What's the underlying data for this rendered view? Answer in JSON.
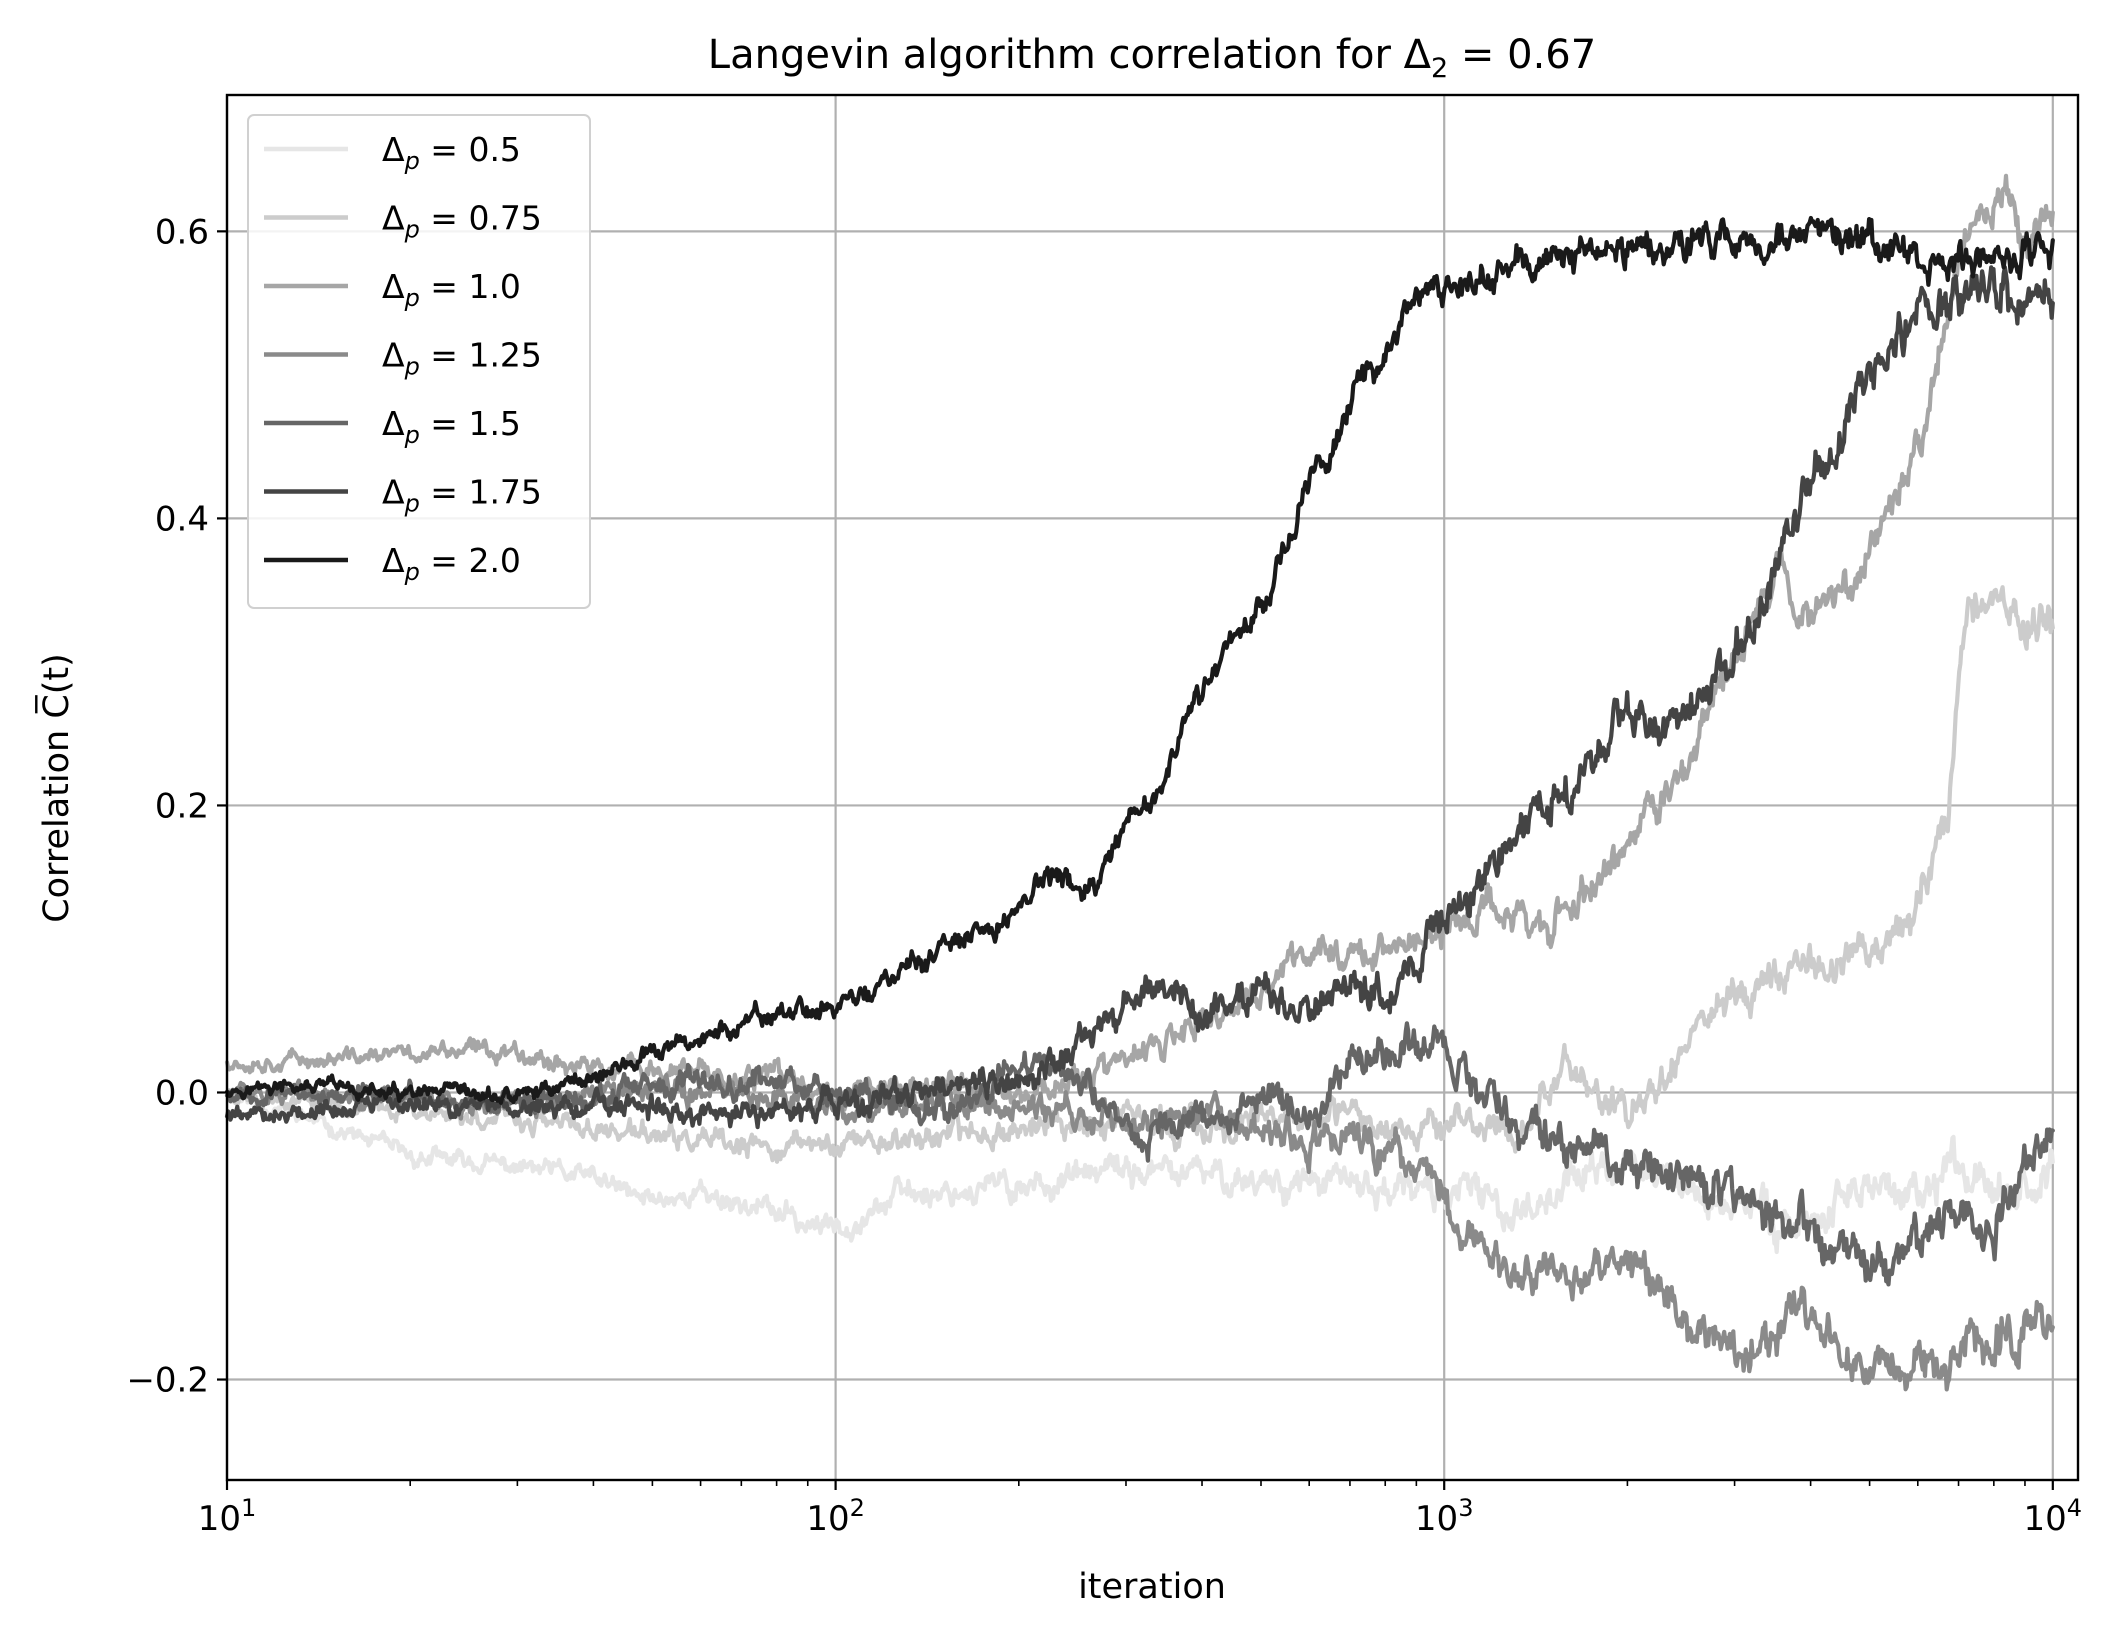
{
  "chart_data": {
    "type": "line",
    "title": "Langevin algorithm correlation for Δ₂ = 0.67",
    "xlabel": "iteration",
    "ylabel": "Correlation C̅(t)",
    "xscale": "log",
    "xlim": [
      10,
      11000
    ],
    "ylim": [
      -0.27,
      0.695
    ],
    "grid": true,
    "legend_position": "upper-left",
    "x_ticks": [
      {
        "value": 10,
        "base": "10",
        "exp": "1"
      },
      {
        "value": 100,
        "base": "10",
        "exp": "2"
      },
      {
        "value": 1000,
        "base": "10",
        "exp": "3"
      },
      {
        "value": 10000,
        "base": "10",
        "exp": "4"
      }
    ],
    "y_ticks": [
      {
        "value": -0.2,
        "label": "−0.2"
      },
      {
        "value": 0.0,
        "label": "0.0"
      },
      {
        "value": 0.2,
        "label": "0.2"
      },
      {
        "value": 0.4,
        "label": "0.4"
      },
      {
        "value": 0.6,
        "label": "0.6"
      }
    ],
    "series": [
      {
        "name": "Δp = 0.5",
        "legend_sub": "p",
        "legend_value": "0.5",
        "color": "#e6e6e6",
        "noise": 0.009,
        "seed": 11,
        "points": [
          [
            10,
            0.0
          ],
          [
            14,
            -0.02
          ],
          [
            20,
            -0.045
          ],
          [
            30,
            -0.052
          ],
          [
            40,
            -0.06
          ],
          [
            48,
            -0.075
          ],
          [
            60,
            -0.07
          ],
          [
            75,
            -0.08
          ],
          [
            95,
            -0.095
          ],
          [
            110,
            -0.085
          ],
          [
            130,
            -0.07
          ],
          [
            200,
            -0.065
          ],
          [
            300,
            -0.055
          ],
          [
            500,
            -0.06
          ],
          [
            700,
            -0.065
          ],
          [
            900,
            -0.07
          ],
          [
            1100,
            -0.07
          ],
          [
            1300,
            -0.085
          ],
          [
            1600,
            -0.06
          ],
          [
            2000,
            -0.05
          ],
          [
            3000,
            -0.08
          ],
          [
            4000,
            -0.09
          ],
          [
            5000,
            -0.06
          ],
          [
            6000,
            -0.08
          ],
          [
            7000,
            -0.05
          ],
          [
            9000,
            -0.06
          ],
          [
            10000,
            -0.06
          ]
        ]
      },
      {
        "name": "Δp = 0.75",
        "legend_sub": "p",
        "legend_value": "0.75",
        "color": "#cccccc",
        "noise": 0.009,
        "seed": 23,
        "points": [
          [
            10,
            0.0
          ],
          [
            20,
            -0.012
          ],
          [
            30,
            -0.02
          ],
          [
            50,
            -0.03
          ],
          [
            70,
            -0.04
          ],
          [
            100,
            -0.035
          ],
          [
            150,
            -0.03
          ],
          [
            250,
            -0.02
          ],
          [
            400,
            -0.025
          ],
          [
            600,
            -0.02
          ],
          [
            800,
            -0.02
          ],
          [
            1000,
            -0.02
          ],
          [
            1300,
            -0.03
          ],
          [
            1600,
            0.02
          ],
          [
            2000,
            -0.02
          ],
          [
            2500,
            0.04
          ],
          [
            3000,
            0.07
          ],
          [
            4000,
            0.09
          ],
          [
            5000,
            0.1
          ],
          [
            6000,
            0.13
          ],
          [
            6700,
            0.2
          ],
          [
            7300,
            0.35
          ],
          [
            8000,
            0.34
          ],
          [
            9000,
            0.33
          ],
          [
            10000,
            0.33
          ]
        ]
      },
      {
        "name": "Δp = 1.0",
        "legend_sub": "p",
        "legend_value": "1.0",
        "color": "#a6a6a6",
        "noise": 0.009,
        "seed": 37,
        "points": [
          [
            10,
            0.022
          ],
          [
            15,
            0.023
          ],
          [
            20,
            0.027
          ],
          [
            30,
            0.03
          ],
          [
            40,
            0.016
          ],
          [
            50,
            0.015
          ],
          [
            60,
            0.012
          ],
          [
            80,
            0.01
          ],
          [
            100,
            0.0
          ],
          [
            150,
            0.005
          ],
          [
            200,
            0.0
          ],
          [
            300,
            0.02
          ],
          [
            400,
            0.045
          ],
          [
            500,
            0.07
          ],
          [
            600,
            0.1
          ],
          [
            800,
            0.1
          ],
          [
            1000,
            0.11
          ],
          [
            1200,
            0.13
          ],
          [
            1500,
            0.115
          ],
          [
            2000,
            0.17
          ],
          [
            2500,
            0.23
          ],
          [
            3000,
            0.3
          ],
          [
            3500,
            0.37
          ],
          [
            4000,
            0.33
          ],
          [
            5000,
            0.38
          ],
          [
            6000,
            0.45
          ],
          [
            7000,
            0.58
          ],
          [
            8000,
            0.62
          ],
          [
            9000,
            0.6
          ],
          [
            10000,
            0.62
          ]
        ]
      },
      {
        "name": "Δp = 1.25",
        "legend_sub": "p",
        "legend_value": "1.25",
        "color": "#8a8a8a",
        "noise": 0.01,
        "seed": 51,
        "points": [
          [
            10,
            0.0
          ],
          [
            20,
            -0.005
          ],
          [
            30,
            -0.01
          ],
          [
            50,
            0.0
          ],
          [
            80,
            0.0
          ],
          [
            100,
            -0.01
          ],
          [
            150,
            -0.005
          ],
          [
            200,
            -0.01
          ],
          [
            300,
            -0.02
          ],
          [
            400,
            -0.015
          ],
          [
            500,
            -0.03
          ],
          [
            600,
            -0.04
          ],
          [
            700,
            -0.03
          ],
          [
            900,
            -0.05
          ],
          [
            1000,
            -0.08
          ],
          [
            1200,
            -0.12
          ],
          [
            1500,
            -0.13
          ],
          [
            2000,
            -0.12
          ],
          [
            2500,
            -0.16
          ],
          [
            3000,
            -0.19
          ],
          [
            3500,
            -0.17
          ],
          [
            4000,
            -0.15
          ],
          [
            5000,
            -0.19
          ],
          [
            6000,
            -0.2
          ],
          [
            7000,
            -0.18
          ],
          [
            8000,
            -0.17
          ],
          [
            9000,
            -0.16
          ],
          [
            10000,
            -0.16
          ]
        ]
      },
      {
        "name": "Δp = 1.5",
        "legend_sub": "p",
        "legend_value": "1.5",
        "color": "#666666",
        "noise": 0.01,
        "seed": 67,
        "points": [
          [
            10,
            0.0
          ],
          [
            20,
            -0.003
          ],
          [
            30,
            -0.005
          ],
          [
            50,
            0.0
          ],
          [
            70,
            0.01
          ],
          [
            100,
            0.005
          ],
          [
            150,
            -0.01
          ],
          [
            200,
            0.02
          ],
          [
            250,
            0.01
          ],
          [
            300,
            -0.03
          ],
          [
            400,
            -0.02
          ],
          [
            500,
            0.0
          ],
          [
            600,
            -0.02
          ],
          [
            700,
            0.02
          ],
          [
            900,
            0.04
          ],
          [
            1000,
            0.03
          ],
          [
            1300,
            -0.02
          ],
          [
            1600,
            -0.04
          ],
          [
            2000,
            -0.05
          ],
          [
            2500,
            -0.06
          ],
          [
            3000,
            -0.07
          ],
          [
            4000,
            -0.1
          ],
          [
            5000,
            -0.12
          ],
          [
            6000,
            -0.1
          ],
          [
            7000,
            -0.09
          ],
          [
            8000,
            -0.1
          ],
          [
            9000,
            -0.05
          ],
          [
            10000,
            -0.04
          ]
        ]
      },
      {
        "name": "Δp = 1.75",
        "legend_sub": "p",
        "legend_value": "1.75",
        "color": "#444444",
        "noise": 0.01,
        "seed": 79,
        "points": [
          [
            10,
            -0.015
          ],
          [
            20,
            -0.008
          ],
          [
            30,
            -0.01
          ],
          [
            50,
            -0.012
          ],
          [
            70,
            -0.015
          ],
          [
            100,
            -0.01
          ],
          [
            150,
            0.0
          ],
          [
            200,
            0.005
          ],
          [
            250,
            0.03
          ],
          [
            300,
            0.06
          ],
          [
            350,
            0.08
          ],
          [
            400,
            0.05
          ],
          [
            500,
            0.07
          ],
          [
            600,
            0.06
          ],
          [
            700,
            0.08
          ],
          [
            800,
            0.07
          ],
          [
            900,
            0.09
          ],
          [
            1000,
            0.12
          ],
          [
            1200,
            0.16
          ],
          [
            1400,
            0.19
          ],
          [
            1600,
            0.21
          ],
          [
            2000,
            0.27
          ],
          [
            2500,
            0.26
          ],
          [
            3000,
            0.3
          ],
          [
            3500,
            0.36
          ],
          [
            4000,
            0.42
          ],
          [
            5000,
            0.5
          ],
          [
            6000,
            0.55
          ],
          [
            7000,
            0.56
          ],
          [
            8000,
            0.56
          ],
          [
            9000,
            0.55
          ],
          [
            10000,
            0.54
          ]
        ]
      },
      {
        "name": "Δp = 2.0",
        "legend_sub": "p",
        "legend_value": "2.0",
        "color": "#1a1a1a",
        "noise": 0.008,
        "seed": 97,
        "points": [
          [
            10,
            0.003
          ],
          [
            15,
            0.003
          ],
          [
            20,
            -0.003
          ],
          [
            30,
            -0.003
          ],
          [
            40,
            0.012
          ],
          [
            50,
            0.025
          ],
          [
            60,
            0.038
          ],
          [
            70,
            0.045
          ],
          [
            80,
            0.055
          ],
          [
            100,
            0.06
          ],
          [
            120,
            0.075
          ],
          [
            150,
            0.1
          ],
          [
            180,
            0.11
          ],
          [
            220,
            0.15
          ],
          [
            270,
            0.14
          ],
          [
            300,
            0.18
          ],
          [
            350,
            0.22
          ],
          [
            400,
            0.28
          ],
          [
            450,
            0.32
          ],
          [
            500,
            0.34
          ],
          [
            600,
            0.42
          ],
          [
            700,
            0.48
          ],
          [
            800,
            0.52
          ],
          [
            900,
            0.55
          ],
          [
            1000,
            0.56
          ],
          [
            1200,
            0.57
          ],
          [
            1500,
            0.58
          ],
          [
            2000,
            0.59
          ],
          [
            3000,
            0.595
          ],
          [
            4000,
            0.595
          ],
          [
            5000,
            0.59
          ],
          [
            6000,
            0.58
          ],
          [
            7000,
            0.575
          ],
          [
            8000,
            0.585
          ],
          [
            9000,
            0.58
          ],
          [
            10000,
            0.59
          ]
        ]
      }
    ]
  }
}
